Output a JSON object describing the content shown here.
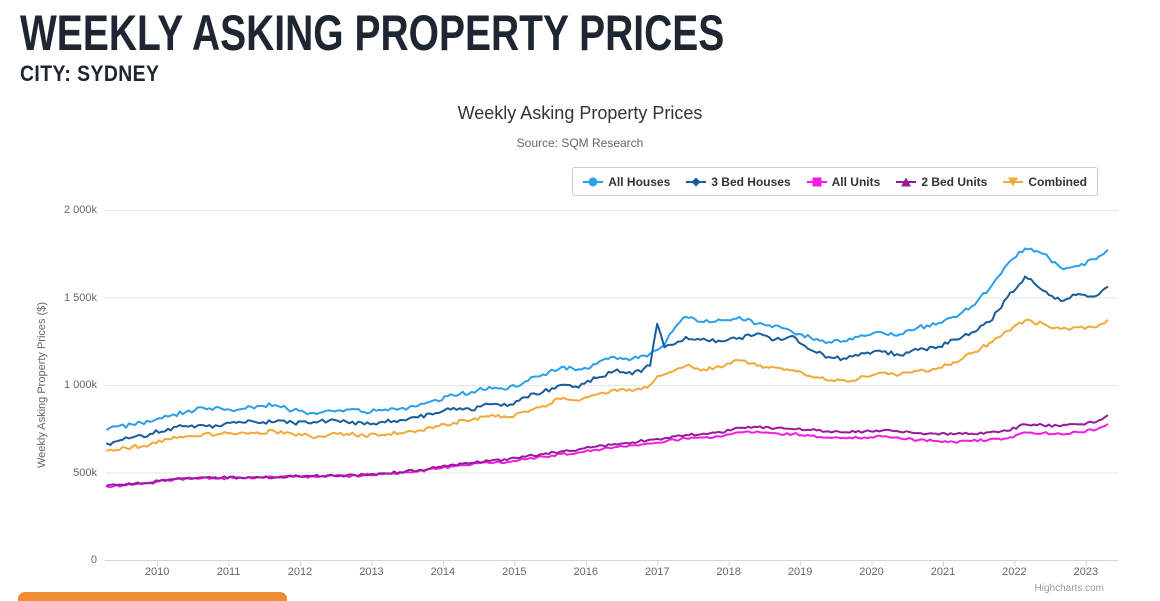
{
  "page": {
    "title": "WEEKLY ASKING PROPERTY PRICES",
    "subtitle": "CITY: SYDNEY"
  },
  "colors": {
    "header_text": "#1d2631",
    "title_text": "#333333",
    "muted_text": "#666666",
    "credits_text": "#999999",
    "gridline": "#e6e6e6",
    "axis_line": "#ccd6eb",
    "legend_border": "#cccccc",
    "orange_bar": "#ef8b33",
    "all_houses": "#2b9fe9",
    "three_bed_houses": "#1a5d9e",
    "all_units": "#f41be4",
    "two_bed_units": "#971b9b",
    "combined": "#f2a83b"
  },
  "chart_data": {
    "type": "line",
    "title": "Weekly Asking Property Prices",
    "subtitle": "Source: SQM Research",
    "credits": "Highcharts.com",
    "xlabel": "",
    "ylabel": "Weekly Asking Property Prices ($)",
    "grid": true,
    "legend_position": "top-right",
    "xlim": [
      2009.27,
      2023.45
    ],
    "ylim": [
      0,
      2000000
    ],
    "ylim_k": [
      0,
      2000
    ],
    "values_unit": "thousands of dollars ($k)",
    "x_unit": "decimal year",
    "y_ticks": [
      {
        "value_k": 0,
        "label": "0"
      },
      {
        "value_k": 500,
        "label": "500k"
      },
      {
        "value_k": 1000,
        "label": "1 000k"
      },
      {
        "value_k": 1500,
        "label": "1 500k"
      },
      {
        "value_k": 2000,
        "label": "2 000k"
      }
    ],
    "x_ticks": [
      2010,
      2011,
      2012,
      2013,
      2014,
      2015,
      2016,
      2017,
      2018,
      2019,
      2020,
      2021,
      2022,
      2023
    ],
    "x": [
      2009.3,
      2009.65,
      2009.9,
      2010.15,
      2010.4,
      2010.65,
      2010.9,
      2011.15,
      2011.4,
      2011.65,
      2011.9,
      2012.15,
      2012.4,
      2012.65,
      2012.9,
      2013.15,
      2013.4,
      2013.65,
      2013.9,
      2014.15,
      2014.4,
      2014.65,
      2014.9,
      2015.15,
      2015.4,
      2015.65,
      2015.9,
      2016.15,
      2016.4,
      2016.65,
      2016.9,
      2017.0,
      2017.1,
      2017.25,
      2017.4,
      2017.65,
      2017.9,
      2018.15,
      2018.4,
      2018.65,
      2018.9,
      2019.15,
      2019.4,
      2019.65,
      2019.9,
      2020.15,
      2020.4,
      2020.65,
      2020.9,
      2021.15,
      2021.4,
      2021.65,
      2021.9,
      2022.15,
      2022.4,
      2022.65,
      2022.9,
      2023.15,
      2023.3
    ],
    "series": [
      {
        "name": "All Houses",
        "slug": "all-houses",
        "color": "#2b9fe9",
        "marker": "circle",
        "values_k": [
          745,
          775,
          790,
          820,
          845,
          870,
          865,
          860,
          880,
          885,
          855,
          840,
          855,
          860,
          845,
          855,
          865,
          880,
          915,
          940,
          960,
          990,
          975,
          1020,
          1060,
          1100,
          1090,
          1120,
          1160,
          1150,
          1180,
          1200,
          1230,
          1330,
          1390,
          1360,
          1370,
          1390,
          1350,
          1340,
          1300,
          1270,
          1245,
          1250,
          1280,
          1300,
          1290,
          1330,
          1345,
          1390,
          1450,
          1550,
          1690,
          1780,
          1750,
          1670,
          1680,
          1720,
          1770
        ]
      },
      {
        "name": "3 Bed Houses",
        "slug": "3-bed-houses",
        "color": "#1a5d9e",
        "marker": "diamond",
        "values_k": [
          665,
          700,
          720,
          750,
          765,
          770,
          765,
          790,
          785,
          790,
          785,
          780,
          795,
          790,
          775,
          790,
          800,
          815,
          840,
          870,
          855,
          890,
          880,
          930,
          960,
          1000,
          985,
          1040,
          1080,
          1060,
          1110,
          1350,
          1215,
          1235,
          1275,
          1265,
          1250,
          1270,
          1295,
          1260,
          1280,
          1200,
          1160,
          1150,
          1180,
          1190,
          1170,
          1200,
          1210,
          1260,
          1300,
          1360,
          1500,
          1620,
          1540,
          1480,
          1520,
          1510,
          1560
        ]
      },
      {
        "name": "All Units",
        "slug": "all-units",
        "color": "#f41be4",
        "marker": "square",
        "values_k": [
          420,
          430,
          440,
          455,
          465,
          470,
          468,
          470,
          472,
          470,
          475,
          478,
          482,
          480,
          485,
          490,
          498,
          505,
          520,
          535,
          545,
          555,
          560,
          575,
          590,
          605,
          615,
          630,
          645,
          655,
          665,
          670,
          674,
          686,
          695,
          700,
          705,
          730,
          735,
          725,
          720,
          710,
          700,
          695,
          700,
          705,
          695,
          685,
          680,
          675,
          680,
          690,
          695,
          730,
          725,
          720,
          730,
          745,
          775
        ]
      },
      {
        "name": "2 Bed Units",
        "slug": "2-bed-units",
        "color": "#971b9b",
        "marker": "triangle",
        "values_k": [
          425,
          433,
          442,
          458,
          468,
          472,
          470,
          472,
          475,
          473,
          478,
          480,
          485,
          483,
          488,
          495,
          502,
          512,
          528,
          545,
          555,
          565,
          572,
          590,
          605,
          620,
          632,
          648,
          662,
          672,
          688,
          692,
          696,
          706,
          715,
          722,
          728,
          755,
          760,
          752,
          748,
          742,
          735,
          730,
          735,
          740,
          732,
          725,
          722,
          718,
          722,
          730,
          738,
          775,
          770,
          765,
          775,
          790,
          825
        ]
      },
      {
        "name": "Combined",
        "slug": "combined",
        "color": "#f2a83b",
        "marker": "triangle-down",
        "values_k": [
          625,
          645,
          660,
          690,
          705,
          720,
          720,
          725,
          730,
          735,
          720,
          705,
          715,
          720,
          710,
          715,
          725,
          740,
          765,
          785,
          800,
          820,
          815,
          850,
          880,
          920,
          910,
          945,
          975,
          965,
          1000,
          1050,
          1060,
          1085,
          1110,
          1090,
          1100,
          1140,
          1110,
          1100,
          1085,
          1050,
          1025,
          1020,
          1050,
          1070,
          1060,
          1080,
          1090,
          1130,
          1180,
          1240,
          1310,
          1370,
          1350,
          1320,
          1330,
          1330,
          1370
        ]
      }
    ]
  }
}
